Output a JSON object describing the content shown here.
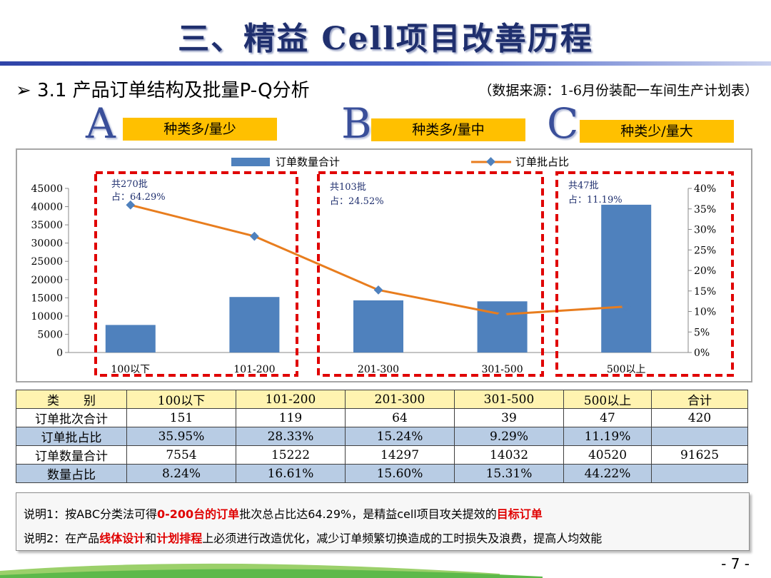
{
  "header": {
    "title": "三、精益 Cell项目改善历程",
    "subtitle": "➢ 3.1  产品订单结构及批量P-Q分析",
    "source": "（数据来源：1-6月份装配一车间生产计划表）"
  },
  "groups": [
    {
      "letter": "A",
      "tag": "种类多/量少",
      "count": "共270批",
      "share": "占：64.29%"
    },
    {
      "letter": "B",
      "tag": "种类多/量中",
      "count": "共103批",
      "share": "占：24.52%"
    },
    {
      "letter": "C",
      "tag": "种类少/量大",
      "count": "共47批",
      "share": "占：11.19%"
    }
  ],
  "colors": {
    "bar": "#4f81bd",
    "line": "#e87d1e",
    "marker": "#4f81bd",
    "dash": "#e00000",
    "tag": "#ffc000"
  },
  "chart_data": {
    "type": "bar",
    "categories": [
      "100以下",
      "101-200",
      "201-300",
      "301-500",
      "500以上"
    ],
    "series": [
      {
        "name": "订单数量合计",
        "type": "bar",
        "axis": "left",
        "values": [
          7554,
          15222,
          14297,
          14032,
          40520
        ]
      },
      {
        "name": "订单批占比",
        "type": "line",
        "axis": "right",
        "values": [
          35.95,
          28.33,
          15.24,
          9.29,
          11.19
        ]
      }
    ],
    "ylim": [
      0,
      45000
    ],
    "yticks": [
      "0",
      "5000",
      "10000",
      "15000",
      "20000",
      "25000",
      "30000",
      "35000",
      "40000",
      "45000"
    ],
    "y2lim": [
      0,
      40
    ],
    "y2ticks": [
      "0%",
      "5%",
      "10%",
      "15%",
      "20%",
      "25%",
      "30%",
      "35%",
      "40%"
    ],
    "legend_position": "top"
  },
  "table": {
    "header": [
      "类　　别",
      "100以下",
      "101-200",
      "201-300",
      "301-500",
      "500以上",
      "合计"
    ],
    "rows": [
      [
        "订单批次合计",
        "151",
        "119",
        "64",
        "39",
        "47",
        "420"
      ],
      [
        "订单批占比",
        "35.95%",
        "28.33%",
        "15.24%",
        "9.29%",
        "11.19%",
        ""
      ],
      [
        "订单数量合计",
        "7554",
        "15222",
        "14297",
        "14032",
        "40520",
        "91625"
      ],
      [
        "数量占比",
        "8.24%",
        "16.61%",
        "15.60%",
        "15.31%",
        "44.22%",
        ""
      ]
    ]
  },
  "notes": {
    "n1_a": "说明1：按ABC分类法可得",
    "n1_b": "0-200台的订单",
    "n1_c": "批次总占比达64.29%，是精益cell项目攻关提效的",
    "n1_d": "目标订单",
    "n2_a": "说明2：在产品",
    "n2_b": "线体设计",
    "n2_c": "和",
    "n2_d": "计划排程",
    "n2_e": "上必须进行改造优化，减少订单频繁切换造成的工时损失及浪费，提高人均效能"
  },
  "page_number": "- 7 -"
}
